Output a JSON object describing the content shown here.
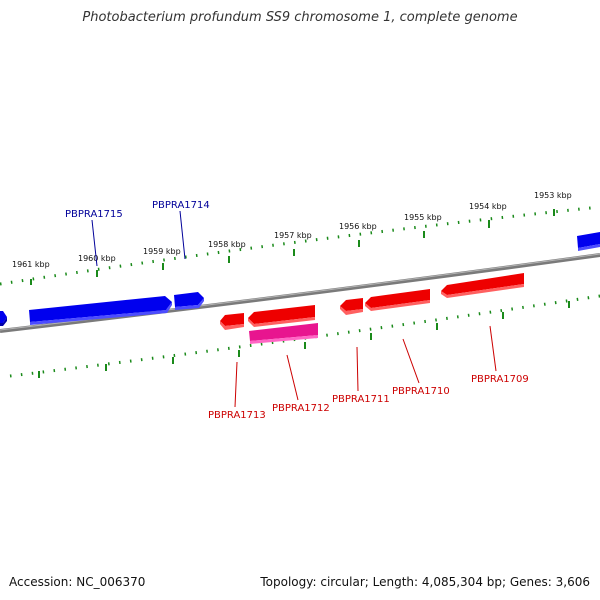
{
  "title": "Photobacterium profundum SS9 chromosome 1, complete genome",
  "footer": {
    "accession": "Accession: NC_006370",
    "summary": "Topology: circular; Length: 4,085,304 bp; Genes: 3,606"
  },
  "colors": {
    "forward_gene": "#0000ee",
    "reverse_gene": "#ee0000",
    "reverse_gene_alt": "#e8158f",
    "ticks": "#1a8a1a",
    "backbone": "#7a7a7a",
    "forward_label": "#000099",
    "reverse_label": "#cc0000"
  },
  "kbp_ticks": [
    "1961 kbp",
    "1960 kbp",
    "1959 kbp",
    "1958 kbp",
    "1957 kbp",
    "1956 kbp",
    "1955 kbp",
    "1954 kbp",
    "1953 kbp"
  ],
  "genes_forward": [
    "PBPRA1715",
    "PBPRA1714"
  ],
  "genes_reverse": [
    "PBPRA1713",
    "PBPRA1712",
    "PBPRA1711",
    "PBPRA1710",
    "PBPRA1709"
  ]
}
